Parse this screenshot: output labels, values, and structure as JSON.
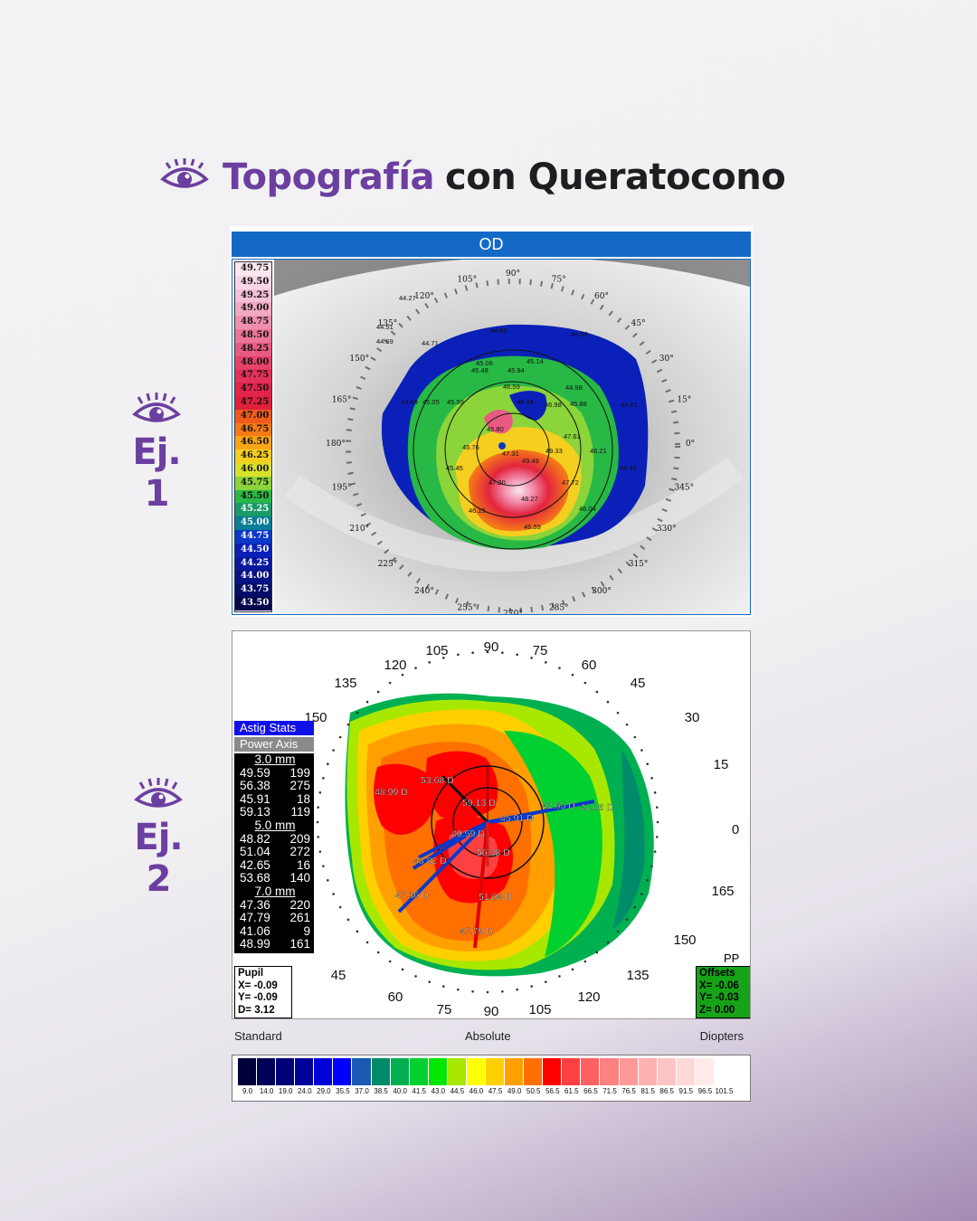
{
  "header": {
    "title_part1": "Topografía",
    "title_part2": "con Queratocono"
  },
  "examples": {
    "ex1": "Ej. 1",
    "ex2": "Ej. 2"
  },
  "map1": {
    "header": "OD",
    "scale": [
      "49.75",
      "49.50",
      "49.25",
      "49.00",
      "48.75",
      "48.50",
      "48.25",
      "48.00",
      "47.75",
      "47.50",
      "47.25",
      "47.00",
      "46.75",
      "46.50",
      "46.25",
      "46.00",
      "45.75",
      "45.50",
      "45.25",
      "45.00",
      "44.75",
      "44.50",
      "44.25",
      "44.00",
      "43.75",
      "43.50"
    ],
    "scale_colors": [
      "#fbe7f0",
      "#f8d6e5",
      "#f4c1d6",
      "#f1a9c4",
      "#ee90ad",
      "#eb7596",
      "#e95a80",
      "#e6436c",
      "#e4325a",
      "#e2244a",
      "#e0203d",
      "#f05a1c",
      "#f47a16",
      "#f9a51a",
      "#f5cf1f",
      "#d8e22a",
      "#8bd43a",
      "#28b845",
      "#1a9a6a",
      "#0a7d96",
      "#0a38c8",
      "#0a20b8",
      "#08189e",
      "#071284",
      "#050c68",
      "#03064c"
    ],
    "axis_labels": [
      "90°",
      "75°",
      "60°",
      "45°",
      "30°",
      "15°",
      "0°",
      "345°",
      "330°",
      "315°",
      "300°",
      "285°",
      "270°",
      "255°",
      "240°",
      "225°",
      "210°",
      "195°",
      "180°",
      "165°",
      "150°",
      "135°",
      "120°",
      "105°"
    ],
    "values": [
      "44.27",
      "44.51",
      "44.69",
      "44.80",
      "45.06",
      "44.71",
      "45.48",
      "45.94",
      "45.14",
      "44.33",
      "46.59",
      "46.34",
      "46.98",
      "44.98",
      "45.05",
      "45.59",
      "45.80",
      "45.88",
      "44.81",
      "44.69",
      "47.61",
      "45.76",
      "47.31",
      "49.49",
      "49.33",
      "46.21",
      "45.45",
      "47.20",
      "47.72",
      "44.39",
      "48.27",
      "46.15",
      "46.04",
      "46.59"
    ]
  },
  "map2": {
    "axis_labels": [
      "90",
      "75",
      "60",
      "45",
      "30",
      "15",
      "0",
      "165",
      "150",
      "135",
      "120",
      "105",
      "90",
      "75",
      "60",
      "45",
      "150",
      "135",
      "120",
      "105"
    ],
    "stats": {
      "astig": "Astig Stats",
      "power": "Power Axis",
      "groups": [
        {
          "mm": "3.0 mm",
          "rows": [
            [
              "49.59",
              "199"
            ],
            [
              "56.38",
              "275"
            ],
            [
              "45.91",
              "18"
            ],
            [
              "59.13",
              "119"
            ]
          ]
        },
        {
          "mm": "5.0 mm",
          "rows": [
            [
              "48.82",
              "209"
            ],
            [
              "51.04",
              "272"
            ],
            [
              "42.65",
              "16"
            ],
            [
              "53.68",
              "140"
            ]
          ]
        },
        {
          "mm": "7.0 mm",
          "rows": [
            [
              "47.36",
              "220"
            ],
            [
              "47.79",
              "261"
            ],
            [
              "41.06",
              "9"
            ],
            [
              "48.99",
              "161"
            ]
          ]
        }
      ]
    },
    "labels": [
      "53.68 D",
      "48.99 D",
      "59.13 D",
      "45.91 D",
      "42.65 D",
      "41.06 D",
      "49.59 D",
      "56.38 D",
      "48.82 D",
      "47.36 D",
      "51.04 D",
      "47.79 D"
    ],
    "pupil": {
      "title": "Pupil",
      "x": "X= -0.09",
      "y": "Y= -0.09",
      "d": "D=  3.12"
    },
    "offsets": {
      "title": "Offsets",
      "x": "X= -0.06",
      "y": "Y= -0.03",
      "z": "Z=  0.00"
    },
    "pp": "PP",
    "bottom": {
      "left": "Standard",
      "center": "Absolute",
      "right": "Diopters"
    },
    "colorbar_ticks": [
      "9.0",
      "14.0",
      "19.0",
      "24.0",
      "29.0",
      "35.5",
      "37.0",
      "38.5",
      "40.0",
      "41.5",
      "43.0",
      "44.5",
      "46.0",
      "47.5",
      "49.0",
      "50.5",
      "56.5",
      "61.5",
      "66.5",
      "71.5",
      "76.5",
      "81.5",
      "86.5",
      "91.5",
      "96.5",
      "101.5"
    ],
    "colorbar_colors": [
      "#00003a",
      "#000058",
      "#000078",
      "#00009a",
      "#0000d8",
      "#0000ff",
      "#1a5ab0",
      "#008c6a",
      "#00b050",
      "#00d030",
      "#00e800",
      "#a8e800",
      "#ffff00",
      "#ffd000",
      "#ffa000",
      "#ff7000",
      "#ff0000",
      "#ff4040",
      "#ff6060",
      "#ff8080",
      "#ff9898",
      "#ffb0b0",
      "#ffc4c4",
      "#ffd8d8",
      "#ffeaea",
      "#ffffff"
    ]
  }
}
